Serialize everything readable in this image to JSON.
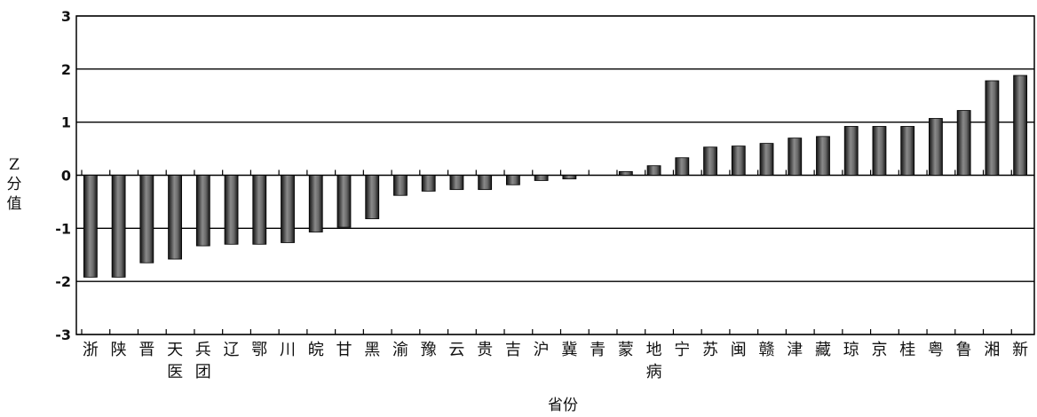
{
  "chart_data": {
    "type": "bar",
    "ylabel": "Z分值",
    "xlabel": "省份",
    "ylim": [
      -3,
      3
    ],
    "yticks": [
      3,
      2,
      1,
      0,
      -1,
      -2,
      -3
    ],
    "grid": true,
    "categories": [
      "浙",
      "陕",
      "晋",
      "天\n医",
      "兵\n团",
      "辽",
      "鄂",
      "川",
      "皖",
      "甘",
      "黑",
      "渝",
      "豫",
      "云",
      "贵",
      "吉",
      "沪",
      "冀",
      "青",
      "蒙",
      "地\n病",
      "宁",
      "苏",
      "闽",
      "赣",
      "津",
      "藏",
      "琼",
      "京",
      "桂",
      "粤",
      "鲁",
      "湘",
      "新"
    ],
    "values": [
      -1.92,
      -1.92,
      -1.65,
      -1.58,
      -1.33,
      -1.3,
      -1.3,
      -1.27,
      -1.07,
      -0.98,
      -0.82,
      -0.38,
      -0.3,
      -0.27,
      -0.27,
      -0.18,
      -0.1,
      -0.07,
      0.0,
      0.07,
      0.18,
      0.33,
      0.53,
      0.55,
      0.6,
      0.7,
      0.73,
      0.92,
      0.92,
      0.92,
      1.07,
      1.22,
      1.78,
      1.88
    ]
  }
}
